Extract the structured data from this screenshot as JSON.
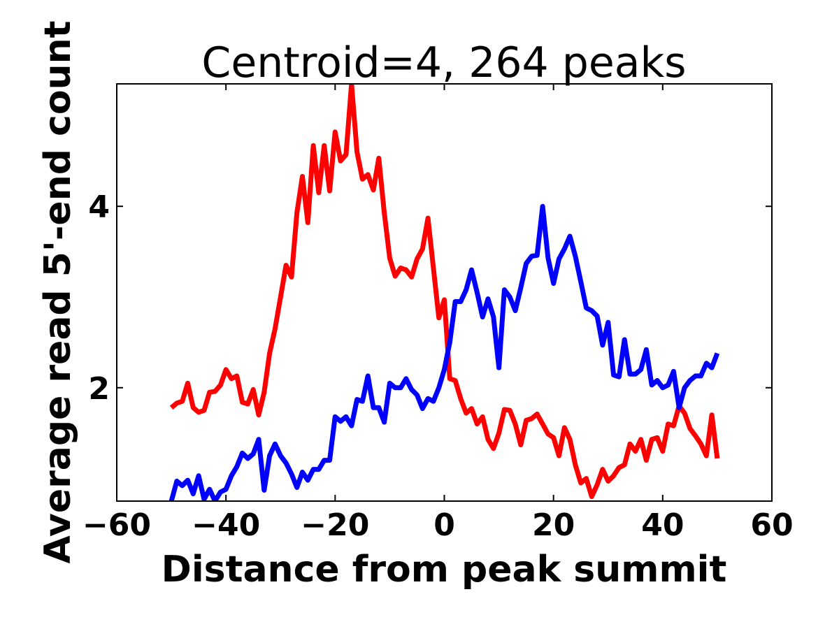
{
  "chart_data": {
    "type": "line",
    "title": "Centroid=4, 264 peaks",
    "xlabel": "Distance from peak summit",
    "ylabel": "Average read 5'-end count",
    "xlim": [
      -60,
      60
    ],
    "ylim": [
      0.75,
      5.35
    ],
    "xticks": [
      -60,
      -40,
      -20,
      0,
      20,
      40,
      60
    ],
    "xtick_labels": [
      "−60",
      "−40",
      "−20",
      "0",
      "20",
      "40",
      "60"
    ],
    "yticks": [
      2,
      4
    ],
    "ytick_labels": [
      "2",
      "4"
    ],
    "grid": false,
    "legend": "none",
    "series": [
      {
        "color": "#ff0000",
        "x": [
          -50,
          -49,
          -48,
          -47,
          -46,
          -45,
          -44,
          -43,
          -42,
          -41,
          -40,
          -39,
          -38,
          -37,
          -36,
          -35,
          -34,
          -33,
          -32,
          -31,
          -30,
          -29,
          -28,
          -27,
          -26,
          -25,
          -24,
          -23,
          -22,
          -21,
          -20,
          -19,
          -18,
          -17,
          -16,
          -15,
          -14,
          -13,
          -12,
          -11,
          -10,
          -9,
          -8,
          -7,
          -6,
          -5,
          -4,
          -3,
          -2,
          -1,
          0,
          1,
          2,
          3,
          4,
          5,
          6,
          7,
          8,
          9,
          10,
          11,
          12,
          13,
          14,
          15,
          16,
          17,
          18,
          19,
          20,
          21,
          22,
          23,
          24,
          25,
          26,
          27,
          28,
          29,
          30,
          31,
          32,
          33,
          34,
          35,
          36,
          37,
          38,
          39,
          40,
          41,
          42,
          43,
          44,
          45,
          46,
          47,
          48,
          49,
          50
        ],
        "values": [
          1.78,
          1.83,
          1.85,
          2.05,
          1.78,
          1.73,
          1.75,
          1.95,
          1.96,
          2.03,
          2.2,
          2.1,
          2.13,
          1.84,
          1.82,
          1.98,
          1.7,
          1.95,
          2.38,
          2.65,
          3.0,
          3.35,
          3.22,
          3.93,
          4.33,
          3.82,
          4.67,
          4.15,
          4.67,
          4.17,
          4.82,
          4.5,
          4.57,
          5.35,
          4.6,
          4.3,
          4.35,
          4.18,
          4.53,
          3.93,
          3.43,
          3.23,
          3.32,
          3.3,
          3.22,
          3.42,
          3.53,
          3.87,
          3.32,
          2.77,
          2.97,
          2.1,
          2.08,
          1.88,
          1.72,
          1.77,
          1.6,
          1.68,
          1.43,
          1.33,
          1.5,
          1.76,
          1.75,
          1.6,
          1.37,
          1.64,
          1.66,
          1.71,
          1.6,
          1.49,
          1.45,
          1.25,
          1.56,
          1.43,
          1.15,
          0.95,
          1.0,
          0.8,
          0.93,
          1.1,
          0.97,
          1.03,
          1.12,
          1.15,
          1.38,
          1.3,
          1.43,
          1.2,
          1.43,
          1.45,
          1.3,
          1.6,
          1.58,
          1.8,
          1.72,
          1.55,
          1.47,
          1.38,
          1.25,
          1.7,
          1.22
        ]
      },
      {
        "color": "#0000ff",
        "x": [
          -50,
          -49,
          -48,
          -47,
          -46,
          -45,
          -44,
          -43,
          -42,
          -41,
          -40,
          -39,
          -38,
          -37,
          -36,
          -35,
          -34,
          -33,
          -32,
          -31,
          -30,
          -29,
          -28,
          -27,
          -26,
          -25,
          -24,
          -23,
          -22,
          -21,
          -20,
          -19,
          -18,
          -17,
          -16,
          -15,
          -14,
          -13,
          -12,
          -11,
          -10,
          -9,
          -8,
          -7,
          -6,
          -5,
          -4,
          -3,
          -2,
          -1,
          0,
          1,
          2,
          3,
          4,
          5,
          6,
          7,
          8,
          9,
          10,
          11,
          12,
          13,
          14,
          15,
          16,
          17,
          18,
          19,
          20,
          21,
          22,
          23,
          24,
          25,
          26,
          27,
          28,
          29,
          30,
          31,
          32,
          33,
          34,
          35,
          36,
          37,
          38,
          39,
          40,
          41,
          42,
          43,
          44,
          45,
          46,
          47,
          48,
          49,
          50
        ],
        "values": [
          0.75,
          0.97,
          0.92,
          0.98,
          0.83,
          1.03,
          0.77,
          0.88,
          0.75,
          0.85,
          0.88,
          1.03,
          1.13,
          1.28,
          1.22,
          1.27,
          1.43,
          0.87,
          1.25,
          1.38,
          1.25,
          1.17,
          1.05,
          0.9,
          1.07,
          0.98,
          1.1,
          1.1,
          1.2,
          1.2,
          1.68,
          1.63,
          1.68,
          1.58,
          1.87,
          1.85,
          2.13,
          1.78,
          1.78,
          1.62,
          2.05,
          2.0,
          2.0,
          2.1,
          1.98,
          1.92,
          1.77,
          1.88,
          1.85,
          2.0,
          2.2,
          2.5,
          2.95,
          2.95,
          3.08,
          3.3,
          3.05,
          2.78,
          2.98,
          2.78,
          2.22,
          3.08,
          3.0,
          2.85,
          3.1,
          3.37,
          3.45,
          3.46,
          4.0,
          3.43,
          3.15,
          3.42,
          3.53,
          3.67,
          3.45,
          3.17,
          2.88,
          2.85,
          2.79,
          2.47,
          2.72,
          2.14,
          2.12,
          2.53,
          2.15,
          2.15,
          2.2,
          2.42,
          2.03,
          2.08,
          2.0,
          2.03,
          2.18,
          1.78,
          2.0,
          2.08,
          2.13,
          2.13,
          2.27,
          2.22,
          2.38
        ]
      }
    ]
  }
}
